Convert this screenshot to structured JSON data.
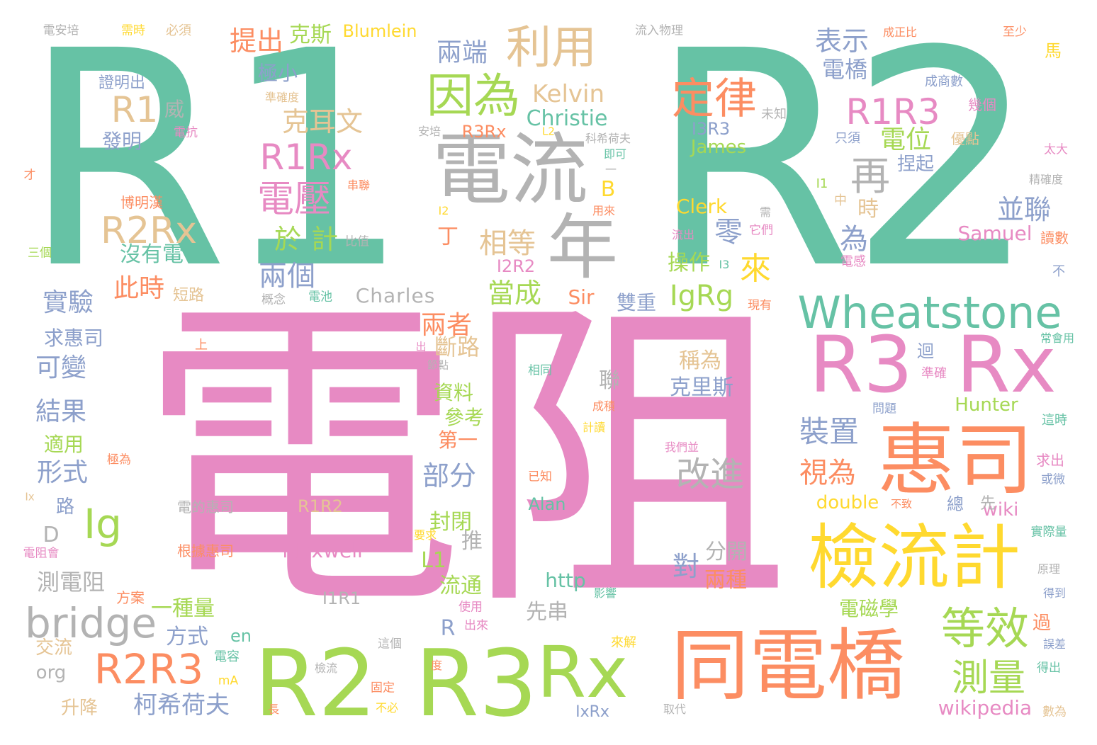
{
  "palette": {
    "teal": "#66c2a5",
    "pink": "#e78ac3",
    "orange": "#fc8d62",
    "green": "#a6d854",
    "yellow": "#ffd92f",
    "tan": "#e5c494",
    "gray": "#b3b3b3",
    "blue": "#8da0cb"
  },
  "words": [
    {
      "t": "R1",
      "c": "teal"
    },
    {
      "t": "R2",
      "c": "teal"
    },
    {
      "t": "電阻",
      "c": "pink"
    },
    {
      "t": "電流",
      "c": "gray"
    },
    {
      "t": "年",
      "c": "gray"
    },
    {
      "t": "因為",
      "c": "green"
    },
    {
      "t": "利用",
      "c": "tan"
    },
    {
      "t": "定律",
      "c": "orange"
    },
    {
      "t": "R1R3",
      "c": "pink"
    },
    {
      "t": "Wheatstone",
      "c": "teal"
    },
    {
      "t": "R3",
      "c": "pink"
    },
    {
      "t": "Rx",
      "c": "pink"
    },
    {
      "t": "惠司",
      "c": "orange"
    },
    {
      "t": "檢流計",
      "c": "yellow"
    },
    {
      "t": "同電橋",
      "c": "orange"
    },
    {
      "t": "R2",
      "c": "green"
    },
    {
      "t": "R3",
      "c": "green"
    },
    {
      "t": "Rx",
      "c": "green"
    },
    {
      "t": "R1Rx",
      "c": "pink"
    },
    {
      "t": "R2Rx",
      "c": "tan"
    },
    {
      "t": "電壓",
      "c": "pink"
    },
    {
      "t": "R1",
      "c": "tan"
    },
    {
      "t": "bridge",
      "c": "gray"
    },
    {
      "t": "R2R3",
      "c": "orange"
    },
    {
      "t": "等效",
      "c": "green"
    },
    {
      "t": "測量",
      "c": "green"
    },
    {
      "t": "Ig",
      "c": "green"
    },
    {
      "t": "IgRg",
      "c": "green"
    },
    {
      "t": "改進",
      "c": "gray"
    },
    {
      "t": "裝置",
      "c": "blue"
    },
    {
      "t": "視為",
      "c": "orange"
    },
    {
      "t": "再",
      "c": "gray"
    },
    {
      "t": "克耳文",
      "c": "tan"
    },
    {
      "t": "Kelvin",
      "c": "tan"
    },
    {
      "t": "Christie",
      "c": "teal"
    },
    {
      "t": "表示",
      "c": "blue"
    },
    {
      "t": "電橋",
      "c": "blue"
    },
    {
      "t": "電位",
      "c": "green"
    },
    {
      "t": "並聯",
      "c": "blue"
    },
    {
      "t": "兩端",
      "c": "blue"
    },
    {
      "t": "提出",
      "c": "orange"
    },
    {
      "t": "克斯",
      "c": "green"
    },
    {
      "t": "Blumlein",
      "c": "yellow"
    },
    {
      "t": "相等",
      "c": "tan"
    },
    {
      "t": "來",
      "c": "yellow"
    },
    {
      "t": "零",
      "c": "blue"
    },
    {
      "t": "為",
      "c": "blue"
    },
    {
      "t": "時",
      "c": "tan"
    },
    {
      "t": "兩個",
      "c": "blue"
    },
    {
      "t": "於",
      "c": "green"
    },
    {
      "t": "計",
      "c": "green"
    },
    {
      "t": "此時",
      "c": "orange"
    },
    {
      "t": "沒有電",
      "c": "teal"
    },
    {
      "t": "當成",
      "c": "green"
    },
    {
      "t": "兩者",
      "c": "orange"
    },
    {
      "t": "斷路",
      "c": "tan"
    },
    {
      "t": "部分",
      "c": "blue"
    },
    {
      "t": "實驗",
      "c": "blue"
    },
    {
      "t": "可變",
      "c": "blue"
    },
    {
      "t": "結果",
      "c": "blue"
    },
    {
      "t": "形式",
      "c": "blue"
    },
    {
      "t": "求惠司",
      "c": "blue"
    },
    {
      "t": "適用",
      "c": "green"
    },
    {
      "t": "測電阻",
      "c": "gray"
    },
    {
      "t": "一種量",
      "c": "green"
    },
    {
      "t": "方式",
      "c": "blue"
    },
    {
      "t": "柯希荷夫",
      "c": "blue"
    },
    {
      "t": "Charles",
      "c": "gray"
    },
    {
      "t": "Samuel",
      "c": "pink"
    },
    {
      "t": "Clerk",
      "c": "yellow"
    },
    {
      "t": "James",
      "c": "green"
    },
    {
      "t": "Hunter",
      "c": "green"
    },
    {
      "t": "Maxwell",
      "c": "pink"
    },
    {
      "t": "R1R2",
      "c": "tan"
    },
    {
      "t": "I1R1",
      "c": "gray"
    },
    {
      "t": "http",
      "c": "teal"
    },
    {
      "t": "wiki",
      "c": "pink"
    },
    {
      "t": "wikipedia",
      "c": "pink"
    },
    {
      "t": "double",
      "c": "yellow"
    },
    {
      "t": "Alan",
      "c": "teal"
    },
    {
      "t": "稱為",
      "c": "tan"
    },
    {
      "t": "克里斯",
      "c": "blue"
    },
    {
      "t": "分開",
      "c": "gray"
    },
    {
      "t": "兩種",
      "c": "orange"
    },
    {
      "t": "對",
      "c": "blue"
    },
    {
      "t": "電磁學",
      "c": "green"
    },
    {
      "t": "操作",
      "c": "green"
    },
    {
      "t": "雙重",
      "c": "blue"
    },
    {
      "t": "R3Rx",
      "c": "orange"
    },
    {
      "t": "I3R3",
      "c": "blue"
    },
    {
      "t": "I2R2",
      "c": "pink"
    },
    {
      "t": "Sir",
      "c": "orange"
    },
    {
      "t": "L1",
      "c": "green"
    },
    {
      "t": "封閉",
      "c": "green"
    },
    {
      "t": "流通",
      "c": "green"
    },
    {
      "t": "資料",
      "c": "green"
    },
    {
      "t": "參考",
      "c": "green"
    },
    {
      "t": "第一",
      "c": "orange"
    },
    {
      "t": "R",
      "c": "blue"
    },
    {
      "t": "先串",
      "c": "gray"
    },
    {
      "t": "推",
      "c": "gray"
    },
    {
      "t": "聯",
      "c": "gray"
    },
    {
      "t": "en",
      "c": "teal"
    },
    {
      "t": "org",
      "c": "gray"
    },
    {
      "t": "交流",
      "c": "tan"
    },
    {
      "t": "升降",
      "c": "tan"
    },
    {
      "t": "D",
      "c": "gray"
    },
    {
      "t": "路",
      "c": "blue"
    },
    {
      "t": "B",
      "c": "yellow"
    },
    {
      "t": "丁",
      "c": "orange"
    },
    {
      "t": "發明",
      "c": "blue"
    },
    {
      "t": "極小",
      "c": "blue"
    },
    {
      "t": "威",
      "c": "gray"
    },
    {
      "t": "證明出",
      "c": "blue"
    },
    {
      "t": "電安培",
      "c": "gray"
    },
    {
      "t": "需時",
      "c": "yellow"
    },
    {
      "t": "必須",
      "c": "tan"
    },
    {
      "t": "流入物理",
      "c": "gray"
    },
    {
      "t": "成正比",
      "c": "orange"
    },
    {
      "t": "至少",
      "c": "orange"
    },
    {
      "t": "馬",
      "c": "yellow"
    },
    {
      "t": "成商數",
      "c": "blue"
    },
    {
      "t": "幾個",
      "c": "pink"
    },
    {
      "t": "未知",
      "c": "gray"
    },
    {
      "t": "優點",
      "c": "tan"
    },
    {
      "t": "只須",
      "c": "blue"
    },
    {
      "t": "太大",
      "c": "pink"
    },
    {
      "t": "精確度",
      "c": "gray"
    },
    {
      "t": "捏起",
      "c": "blue"
    },
    {
      "t": "中",
      "c": "tan"
    },
    {
      "t": "I1",
      "c": "green"
    },
    {
      "t": "讀數",
      "c": "orange"
    },
    {
      "t": "電感",
      "c": "pink"
    },
    {
      "t": "不",
      "c": "blue"
    },
    {
      "t": "常會用",
      "c": "teal"
    },
    {
      "t": "迴",
      "c": "blue"
    },
    {
      "t": "準確",
      "c": "pink"
    },
    {
      "t": "問題",
      "c": "blue"
    },
    {
      "t": "這時",
      "c": "teal"
    },
    {
      "t": "求出",
      "c": "pink"
    },
    {
      "t": "或微",
      "c": "blue"
    },
    {
      "t": "總",
      "c": "blue"
    },
    {
      "t": "先",
      "c": "gray"
    },
    {
      "t": "不致",
      "c": "orange"
    },
    {
      "t": "實際量",
      "c": "teal"
    },
    {
      "t": "原理",
      "c": "gray"
    },
    {
      "t": "得到",
      "c": "blue"
    },
    {
      "t": "過",
      "c": "orange"
    },
    {
      "t": "誤差",
      "c": "blue"
    },
    {
      "t": "得出",
      "c": "teal"
    },
    {
      "t": "數為",
      "c": "tan"
    },
    {
      "t": "IxRx",
      "c": "blue"
    },
    {
      "t": "取代",
      "c": "gray"
    },
    {
      "t": "來解",
      "c": "yellow"
    },
    {
      "t": "影響",
      "c": "teal"
    },
    {
      "t": "使用",
      "c": "pink"
    },
    {
      "t": "出來",
      "c": "pink"
    },
    {
      "t": "這個",
      "c": "gray"
    },
    {
      "t": "檢流",
      "c": "gray"
    },
    {
      "t": "固定",
      "c": "orange"
    },
    {
      "t": "不必",
      "c": "yellow"
    },
    {
      "t": "長",
      "c": "orange"
    },
    {
      "t": "度",
      "c": "orange"
    },
    {
      "t": "mA",
      "c": "yellow"
    },
    {
      "t": "電容",
      "c": "teal"
    },
    {
      "t": "方案",
      "c": "orange"
    },
    {
      "t": "要求",
      "c": "yellow"
    },
    {
      "t": "根據惠司",
      "c": "orange"
    },
    {
      "t": "電的惠司",
      "c": "gray"
    },
    {
      "t": "電阻會",
      "c": "pink"
    },
    {
      "t": "Ix",
      "c": "tan"
    },
    {
      "t": "極為",
      "c": "orange"
    },
    {
      "t": "上",
      "c": "orange"
    },
    {
      "t": "出",
      "c": "pink"
    },
    {
      "t": "節點",
      "c": "gray"
    },
    {
      "t": "相同",
      "c": "teal"
    },
    {
      "t": "成積",
      "c": "orange"
    },
    {
      "t": "計讀",
      "c": "yellow"
    },
    {
      "t": "我們並",
      "c": "pink"
    },
    {
      "t": "已知",
      "c": "orange"
    },
    {
      "t": "短路",
      "c": "tan"
    },
    {
      "t": "概念",
      "c": "gray"
    },
    {
      "t": "電池",
      "c": "teal"
    },
    {
      "t": "比值",
      "c": "gray"
    },
    {
      "t": "三個",
      "c": "green"
    },
    {
      "t": "博明漢",
      "c": "orange"
    },
    {
      "t": "串聯",
      "c": "orange"
    },
    {
      "t": "用來",
      "c": "orange"
    },
    {
      "t": "I2",
      "c": "yellow"
    },
    {
      "t": "流出",
      "c": "pink"
    },
    {
      "t": "它們",
      "c": "pink"
    },
    {
      "t": "現有",
      "c": "orange"
    },
    {
      "t": "I3",
      "c": "teal"
    },
    {
      "t": "需",
      "c": "gray"
    },
    {
      "t": "電抗",
      "c": "pink"
    },
    {
      "t": "安培",
      "c": "gray"
    },
    {
      "t": "科希荷夫",
      "c": "gray"
    },
    {
      "t": "即可",
      "c": "teal"
    },
    {
      "t": "準確度",
      "c": "tan"
    },
    {
      "t": "才",
      "c": "orange"
    },
    {
      "t": "L2",
      "c": "yellow"
    },
    {
      "t": "一",
      "c": "gray"
    }
  ]
}
